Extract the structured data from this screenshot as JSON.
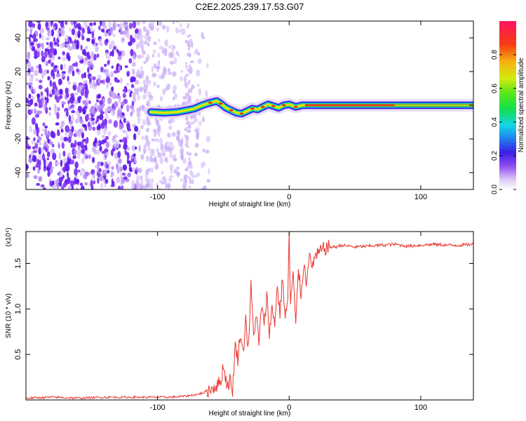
{
  "chart_data": [
    {
      "type": "heatmap",
      "title": "C2E2.2025.239.17.53.G07",
      "xlabel": "Height of straight line (km)",
      "ylabel": "Frequency (Hz)",
      "xlim": [
        -200,
        140
      ],
      "ylim": [
        -50,
        50
      ],
      "xticks": [
        -100,
        0,
        100
      ],
      "yticks": [
        -40,
        -20,
        0,
        20,
        40
      ],
      "colorbar": {
        "label": "Normalized spectral amplitude",
        "range": [
          0,
          1
        ],
        "ticks": [
          "0.0",
          "0.2",
          "0.4",
          "0.6",
          "0.8"
        ]
      },
      "ridge": {
        "description_points_x": [
          -105,
          -95,
          -85,
          -78,
          -72,
          -66,
          -60,
          -55,
          -52,
          -48,
          -44,
          -40,
          -36,
          -32,
          -28,
          -24,
          -20,
          -16,
          -12,
          -8,
          -4,
          0,
          5,
          10,
          20,
          40,
          80,
          140
        ],
        "description_points_y": [
          -4,
          -4.5,
          -4,
          -3,
          -2,
          0,
          1.5,
          2.5,
          1,
          -1.5,
          -3,
          -4.5,
          -5,
          -3.5,
          -2,
          -2.5,
          -1,
          0.5,
          -0.5,
          -1.5,
          0,
          0.5,
          -1,
          0,
          0,
          0,
          0,
          0
        ]
      },
      "noise_region_x": [
        -200,
        -75
      ]
    },
    {
      "type": "line",
      "title": "",
      "xlabel": "Height of straight line (km)",
      "ylabel": "SNR (10 * v/v)",
      "scale_label": "(x10⁴)",
      "xlim": [
        -200,
        140
      ],
      "ylim": [
        0,
        1.85
      ],
      "xticks": [
        -100,
        0,
        100
      ],
      "yticks": [
        "0.5",
        "1.0",
        "1.5"
      ],
      "series": [
        {
          "name": "SNR",
          "color": "#e8352e",
          "x": [
            -200,
            -180,
            -160,
            -140,
            -120,
            -100,
            -90,
            -80,
            -75,
            -70,
            -65,
            -60,
            -55,
            -52,
            -50,
            -47,
            -45,
            -43,
            -41,
            -39,
            -37,
            -35,
            -33,
            -31,
            -29,
            -27,
            -25,
            -23,
            -21,
            -19,
            -17,
            -15,
            -13,
            -11,
            -9,
            -7,
            -5,
            -3,
            -1,
            0,
            1,
            3,
            5,
            7,
            9,
            11,
            13,
            15,
            17,
            19,
            22,
            25,
            30,
            35,
            40,
            50,
            60,
            70,
            80,
            90,
            100,
            110,
            120,
            130,
            140
          ],
          "values": [
            0.02,
            0.03,
            0.02,
            0.03,
            0.03,
            0.03,
            0.03,
            0.04,
            0.05,
            0.06,
            0.08,
            0.12,
            0.16,
            0.2,
            0.38,
            0.15,
            0.22,
            0.1,
            0.6,
            0.45,
            0.75,
            0.5,
            0.9,
            0.55,
            1.25,
            0.7,
            0.95,
            0.6,
            1.05,
            0.8,
            1.15,
            0.75,
            1.0,
            0.85,
            1.25,
            0.95,
            1.35,
            0.9,
            1.1,
            1.85,
            1.05,
            1.4,
            0.8,
            1.45,
            1.15,
            1.5,
            1.3,
            1.6,
            1.45,
            1.55,
            1.6,
            1.65,
            1.68,
            1.68,
            1.7,
            1.68,
            1.69,
            1.7,
            1.71,
            1.69,
            1.7,
            1.71,
            1.7,
            1.7,
            1.71
          ]
        }
      ]
    }
  ]
}
